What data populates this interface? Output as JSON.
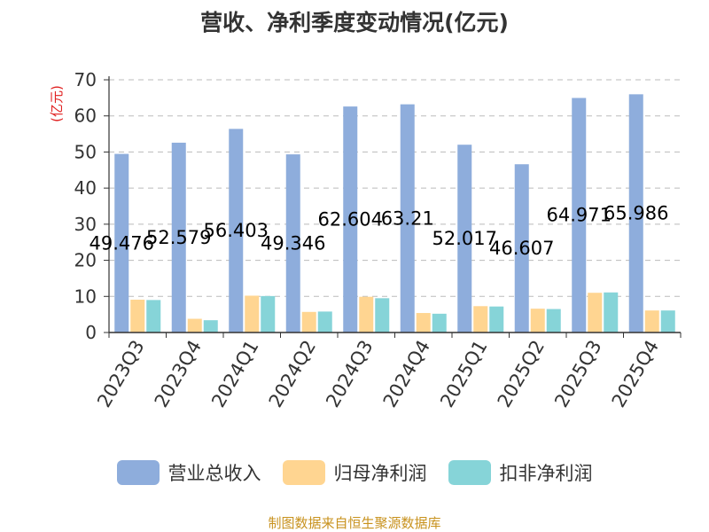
{
  "title": "营收、净利季度变动情况(亿元)",
  "source_note": "制图数据来自恒生聚源数据库",
  "colors": {
    "revenue": "#8eaddc",
    "net_profit": "#ffd591",
    "deducted_profit": "#86d4d8",
    "unit_label": "#e02020",
    "axis": "#333333",
    "grid": "#bbbbbb"
  },
  "chart_data": {
    "type": "bar",
    "title": "营收、净利季度变动情况(亿元)",
    "ylabel": "(亿元)",
    "ylim": [
      0,
      70
    ],
    "yticks": [
      0,
      10,
      20,
      30,
      40,
      50,
      60,
      70
    ],
    "grid": true,
    "legend_position": "bottom",
    "categories": [
      "2023Q3",
      "2023Q4",
      "2024Q1",
      "2024Q2",
      "2024Q3",
      "2024Q4",
      "2025Q1",
      "2025Q2",
      "2025Q3",
      "2025Q4"
    ],
    "series": [
      {
        "name": "营业总收入",
        "color_key": "revenue",
        "values": [
          49.476,
          52.579,
          56.403,
          49.346,
          62.604,
          63.21,
          52.017,
          46.607,
          64.971,
          65.986
        ],
        "labels": [
          "49.476",
          "52.579",
          "56.403",
          "49.346",
          "62.604",
          "63.21",
          "52.017",
          "46.607",
          "64.971",
          "65.986"
        ]
      },
      {
        "name": "归母净利润",
        "color_key": "net_profit",
        "values": [
          9.1,
          3.8,
          10.2,
          5.7,
          9.9,
          5.4,
          7.3,
          6.6,
          11.0,
          6.1
        ]
      },
      {
        "name": "扣非净利润",
        "color_key": "deducted_profit",
        "values": [
          9.0,
          3.4,
          10.1,
          5.8,
          9.5,
          5.2,
          7.2,
          6.5,
          11.1,
          6.1
        ]
      }
    ]
  }
}
